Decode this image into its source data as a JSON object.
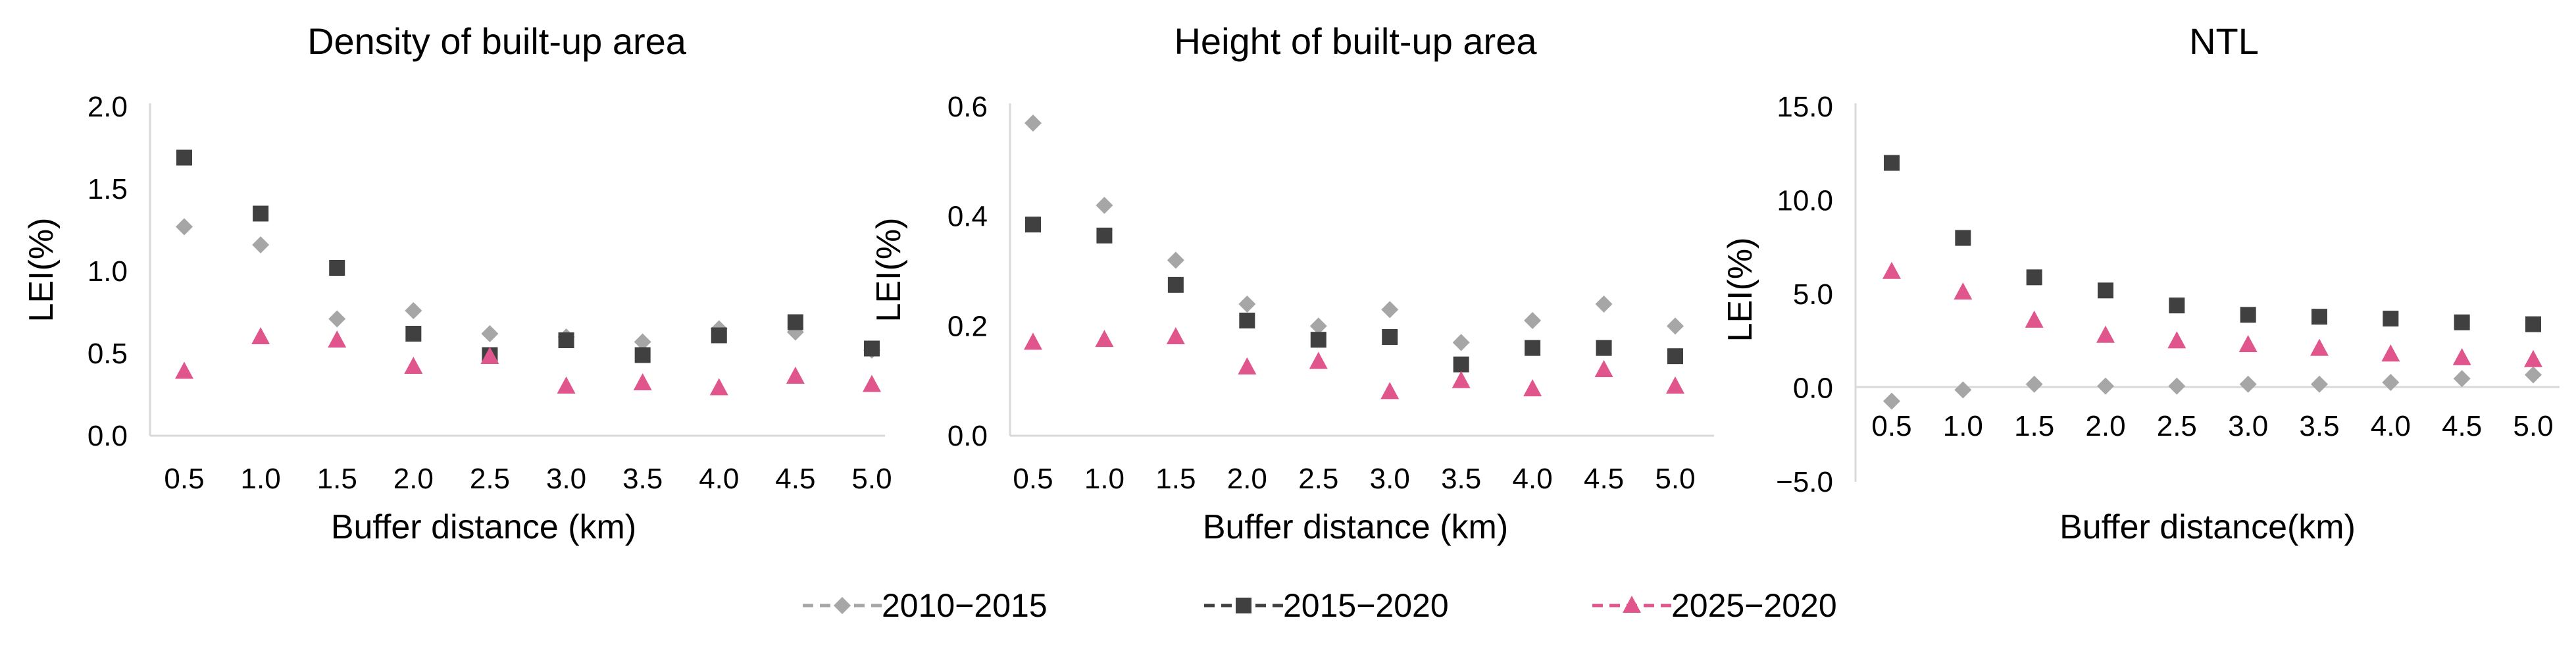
{
  "chart_data": [
    {
      "type": "scatter",
      "title": "Density of built-up area",
      "xlabel": "Buffer distance (km)",
      "ylabel": "LEI(%)",
      "categories": [
        "0.5",
        "1.0",
        "1.5",
        "2.0",
        "2.5",
        "3.0",
        "3.5",
        "4.0",
        "4.5",
        "5.0"
      ],
      "ylim": [
        0,
        2.0
      ],
      "yticks": [
        "0.0",
        "0.5",
        "1.0",
        "1.5",
        "2.0"
      ],
      "series": [
        {
          "name": "2010−2015",
          "values": [
            1.27,
            1.16,
            0.71,
            0.76,
            0.62,
            0.6,
            0.57,
            0.65,
            0.63,
            0.52
          ]
        },
        {
          "name": "2015−2020",
          "values": [
            1.69,
            1.35,
            1.02,
            0.62,
            0.49,
            0.58,
            0.49,
            0.61,
            0.69,
            0.53
          ]
        },
        {
          "name": "2025−2020",
          "values": [
            0.39,
            0.6,
            0.58,
            0.42,
            0.48,
            0.3,
            0.32,
            0.29,
            0.36,
            0.31
          ]
        }
      ]
    },
    {
      "type": "scatter",
      "title": "Height of built-up area",
      "xlabel": "Buffer distance (km)",
      "ylabel": "LEI(%)",
      "categories": [
        "0.5",
        "1.0",
        "1.5",
        "2.0",
        "2.5",
        "3.0",
        "3.5",
        "4.0",
        "4.5",
        "5.0"
      ],
      "ylim": [
        0,
        0.6
      ],
      "yticks": [
        "0.0",
        "0.2",
        "0.4",
        "0.6"
      ],
      "series": [
        {
          "name": "2010−2015",
          "values": [
            0.57,
            0.42,
            0.32,
            0.24,
            0.2,
            0.23,
            0.17,
            0.21,
            0.24,
            0.2
          ]
        },
        {
          "name": "2015−2020",
          "values": [
            0.385,
            0.365,
            0.275,
            0.21,
            0.175,
            0.18,
            0.13,
            0.16,
            0.16,
            0.145
          ]
        },
        {
          "name": "2025−2020",
          "values": [
            0.17,
            0.175,
            0.18,
            0.125,
            0.135,
            0.08,
            0.1,
            0.085,
            0.12,
            0.09
          ]
        }
      ]
    },
    {
      "type": "scatter",
      "title": "NTL",
      "xlabel": "Buffer distance(km)",
      "ylabel": "LEI(%)",
      "categories": [
        "0.5",
        "1.0",
        "1.5",
        "2.0",
        "2.5",
        "3.0",
        "3.5",
        "4.0",
        "4.5",
        "5.0"
      ],
      "ylim": [
        -5.0,
        15.0
      ],
      "yticks": [
        "−5.0",
        "0.0",
        "5.0",
        "10.0",
        "15.0"
      ],
      "series": [
        {
          "name": "2010−2015",
          "values": [
            -0.7,
            -0.1,
            0.2,
            0.1,
            0.1,
            0.2,
            0.2,
            0.3,
            0.5,
            0.7
          ]
        },
        {
          "name": "2015−2020",
          "values": [
            12.0,
            8.0,
            5.9,
            5.2,
            4.4,
            3.9,
            3.8,
            3.7,
            3.5,
            3.4
          ]
        },
        {
          "name": "2025−2020",
          "values": [
            6.2,
            5.1,
            3.6,
            2.8,
            2.5,
            2.3,
            2.1,
            1.8,
            1.6,
            1.5
          ]
        }
      ]
    }
  ],
  "legend": [
    {
      "label": "2010−2015",
      "color": "#A6A6A6",
      "marker": "diamond"
    },
    {
      "label": "2015−2020",
      "color": "#404040",
      "marker": "square"
    },
    {
      "label": "2025−2020",
      "color": "#E0558C",
      "marker": "triangle"
    }
  ]
}
